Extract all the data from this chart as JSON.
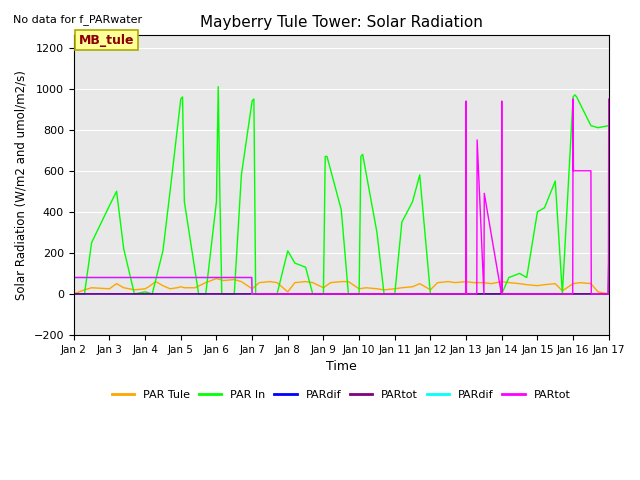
{
  "title": "Mayberry Tule Tower: Solar Radiation",
  "subtitle": "No data for f_PARwater",
  "ylabel": "Solar Radiation (W/m2 and umol/m2/s)",
  "xlabel": "Time",
  "ylim": [
    -200,
    1260
  ],
  "yticks": [
    -200,
    0,
    200,
    400,
    600,
    800,
    1000,
    1200
  ],
  "xlim": [
    0,
    15
  ],
  "xtick_labels": [
    "Jan 2",
    "Jan 3",
    "Jan 4",
    "Jan 5",
    "Jan 6",
    "Jan 7",
    "Jan 8",
    "Jan 9",
    "Jan 10",
    "Jan 11",
    "Jan 12",
    "Jan 13",
    "Jan 14",
    "Jan 15",
    "Jan 16",
    "Jan 17"
  ],
  "legend_entries": [
    {
      "label": "PAR Tule",
      "color": "#FFA500"
    },
    {
      "label": "PAR In",
      "color": "#00FF00"
    },
    {
      "label": "PARdif",
      "color": "#0000FF"
    },
    {
      "label": "PARtot",
      "color": "#800080"
    },
    {
      "label": "PARdif",
      "color": "#00FFFF"
    },
    {
      "label": "PARtot",
      "color": "#FF00FF"
    }
  ],
  "box_label": "MB_tule",
  "box_color": "#8B0000",
  "box_bg": "#FFFF99",
  "bg_color": "#E8E8E8",
  "series": {
    "PAR_tule": {
      "color": "#FFA500",
      "x": [
        0,
        0.3,
        0.5,
        1.0,
        1.2,
        1.4,
        1.7,
        2.0,
        2.1,
        2.3,
        2.5,
        2.7,
        2.9,
        3.0,
        3.1,
        3.4,
        3.7,
        4.0,
        4.2,
        4.5,
        4.7,
        5.0,
        5.2,
        5.5,
        5.7,
        6.0,
        6.2,
        6.5,
        6.7,
        7.0,
        7.2,
        7.5,
        7.7,
        8.0,
        8.2,
        8.5,
        8.7,
        9.0,
        9.2,
        9.5,
        9.7,
        10.0,
        10.2,
        10.5,
        10.7,
        11.0,
        11.2,
        11.5,
        11.7,
        12.0,
        12.2,
        12.5,
        12.7,
        13.0,
        13.2,
        13.5,
        13.7,
        14.0,
        14.2,
        14.5,
        14.7,
        15.0
      ],
      "y": [
        0,
        20,
        30,
        25,
        50,
        30,
        20,
        25,
        35,
        60,
        40,
        25,
        30,
        35,
        30,
        30,
        55,
        75,
        65,
        70,
        60,
        25,
        55,
        60,
        55,
        10,
        55,
        60,
        55,
        30,
        55,
        60,
        60,
        25,
        30,
        25,
        20,
        25,
        30,
        35,
        50,
        20,
        55,
        60,
        55,
        60,
        55,
        55,
        50,
        60,
        55,
        50,
        45,
        40,
        45,
        50,
        15,
        50,
        55,
        50,
        10,
        0
      ]
    },
    "PAR_in": {
      "color": "#00FF00",
      "x": [
        0,
        0.3,
        0.5,
        1.0,
        1.2,
        1.4,
        1.7,
        2.0,
        2.2,
        2.5,
        2.7,
        3.0,
        3.05,
        3.1,
        3.5,
        3.7,
        4.0,
        4.05,
        4.1,
        4.15,
        4.5,
        4.7,
        5.0,
        5.05,
        5.1,
        5.5,
        5.7,
        6.0,
        6.2,
        6.5,
        6.7,
        7.0,
        7.05,
        7.1,
        7.5,
        7.7,
        8.0,
        8.05,
        8.1,
        8.5,
        8.7,
        9.0,
        9.2,
        9.5,
        9.7,
        10.0,
        10.2,
        10.5,
        10.7,
        11.0,
        11.5,
        11.7,
        12.0,
        12.2,
        12.5,
        12.7,
        13.0,
        13.2,
        13.5,
        13.7,
        14.0,
        14.05,
        14.1,
        14.5,
        14.7,
        15.0,
        15.05,
        15.1
      ],
      "y": [
        0,
        0,
        250,
        430,
        500,
        220,
        0,
        10,
        0,
        210,
        500,
        950,
        960,
        450,
        0,
        0,
        450,
        1010,
        450,
        0,
        0,
        580,
        940,
        950,
        0,
        0,
        0,
        210,
        150,
        130,
        0,
        0,
        670,
        670,
        410,
        0,
        0,
        670,
        680,
        300,
        0,
        0,
        350,
        450,
        580,
        0,
        0,
        0,
        0,
        0,
        0,
        0,
        0,
        80,
        100,
        80,
        400,
        420,
        550,
        0,
        960,
        970,
        960,
        820,
        810,
        820,
        0,
        0
      ]
    },
    "PARdif_blue": {
      "color": "#0000FF",
      "x": [
        0,
        4.99,
        5.0,
        5.01,
        10.99,
        11.0,
        11.01,
        11.99,
        12.0,
        12.01,
        13.99,
        14.0,
        14.01,
        14.99,
        15.0,
        15.01
      ],
      "y": [
        0,
        0,
        0,
        0,
        0,
        0,
        0,
        0,
        100,
        0,
        0,
        0,
        0,
        0,
        180,
        0
      ]
    },
    "PARtot_purple": {
      "color": "#800080",
      "x": [
        0,
        4.99,
        5.0,
        5.01,
        10.99,
        11.0,
        11.01,
        11.99,
        12.0,
        12.01,
        13.99,
        14.0,
        14.01,
        14.99,
        15.0,
        15.01
      ],
      "y": [
        0,
        0,
        0,
        0,
        0,
        0,
        0,
        0,
        110,
        0,
        0,
        0,
        0,
        0,
        175,
        0
      ]
    },
    "PARdif_cyan": {
      "color": "#00FFFF",
      "x": [
        0.0,
        0.99,
        1.0,
        1.01,
        3.99,
        4.0,
        4.01,
        4.99,
        5.0
      ],
      "y": [
        80,
        80,
        80,
        80,
        80,
        80,
        80,
        80,
        0
      ]
    },
    "PARtot_magenta": {
      "color": "#FF00FF",
      "x": [
        0.0,
        0.99,
        1.0,
        1.01,
        3.99,
        4.0,
        4.01,
        4.99,
        5.0,
        10.99,
        11.0,
        11.01,
        11.3,
        11.31,
        11.5,
        11.51,
        11.99,
        12.0,
        12.01,
        12.99,
        13.0,
        13.01,
        13.99,
        14.0,
        14.01,
        14.5,
        14.51,
        14.99,
        15.0,
        15.01
      ],
      "y": [
        80,
        80,
        80,
        80,
        80,
        80,
        80,
        80,
        0,
        0,
        940,
        0,
        0,
        750,
        0,
        490,
        0,
        940,
        0,
        0,
        0,
        0,
        0,
        950,
        600,
        600,
        0,
        0,
        950,
        0
      ]
    }
  }
}
